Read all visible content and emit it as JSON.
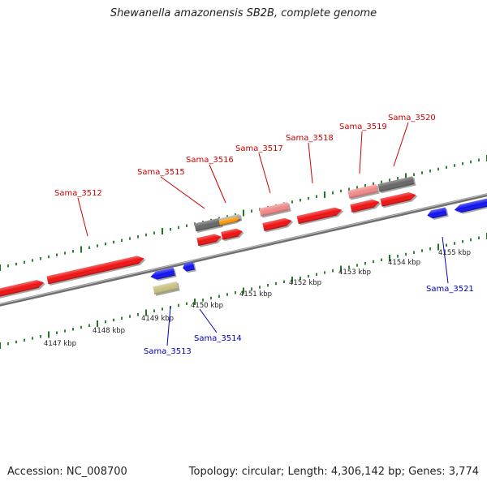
{
  "title": "Shewanella amazonensis SB2B, complete genome",
  "footer": {
    "accession_label": "Accession:",
    "accession": "NC_008700",
    "topology_label": "Topology:",
    "topology": "circular",
    "length_label": "Length:",
    "length": "4,306,142 bp",
    "genes_label": "Genes:",
    "genes": "3,774"
  },
  "colors": {
    "forward_gene": "#ee1111",
    "reverse_gene": "#1111ee",
    "pink_gene": "#f08888",
    "gray_gene": "#666666",
    "light_gray_gene": "#aaaaaa",
    "orange_gene": "#ff9900",
    "olive_gene": "#c8c080",
    "forward_label": "#cc0000",
    "reverse_label": "#0000bb",
    "tick_green": "#1a7a1a",
    "backbone": "#888888"
  },
  "scale_labels": [
    {
      "text": "4147 kbp",
      "id": "4147"
    },
    {
      "text": "4148 kbp",
      "id": "4148"
    },
    {
      "text": "4149 kbp",
      "id": "4149"
    },
    {
      "text": "4150 kbp",
      "id": "4150"
    },
    {
      "text": "4151 kbp",
      "id": "4151"
    },
    {
      "text": "4152 kbp",
      "id": "4152"
    },
    {
      "text": "4153 kbp",
      "id": "4153"
    },
    {
      "text": "4154 kbp",
      "id": "4154"
    },
    {
      "text": "4155 kbp",
      "id": "4155"
    }
  ],
  "gene_labels": [
    {
      "text": "Sama_3512",
      "strand": "forward"
    },
    {
      "text": "Sama_3515",
      "strand": "forward"
    },
    {
      "text": "Sama_3516",
      "strand": "forward"
    },
    {
      "text": "Sama_3517",
      "strand": "forward"
    },
    {
      "text": "Sama_3518",
      "strand": "forward"
    },
    {
      "text": "Sama_3519",
      "strand": "forward"
    },
    {
      "text": "Sama_3520",
      "strand": "forward"
    },
    {
      "text": "Sama_3513",
      "strand": "reverse"
    },
    {
      "text": "Sama_3514",
      "strand": "reverse"
    },
    {
      "text": "Sama_3521",
      "strand": "reverse"
    }
  ]
}
